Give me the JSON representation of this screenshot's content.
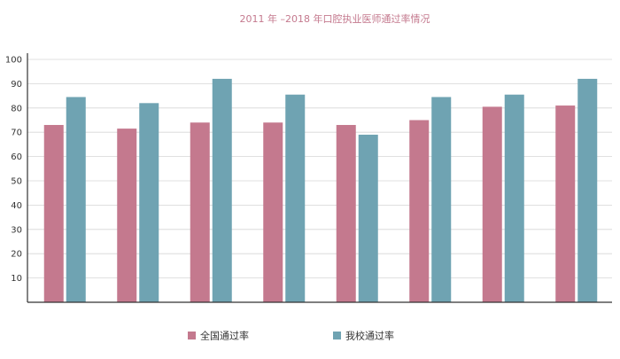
{
  "chart_data": {
    "type": "bar",
    "title": "2011 年 –2018 年口腔执业医师通过率情况",
    "xlabel": "",
    "ylabel": "",
    "ylim": [
      0,
      100
    ],
    "yticks": [
      10,
      20,
      30,
      40,
      50,
      60,
      70,
      80,
      90,
      100
    ],
    "grid": true,
    "legend_position": "bottom",
    "categories": [
      "",
      "",
      "",
      "",
      "",
      "",
      "",
      ""
    ],
    "series": [
      {
        "name": "全国通过率",
        "color": "#c4798e",
        "values": [
          73,
          71.5,
          74,
          74,
          73,
          75,
          80.5,
          81
        ]
      },
      {
        "name": "我校通过率",
        "color": "#6fa3b2",
        "values": [
          84.5,
          82,
          92,
          85.5,
          69,
          84.5,
          85.5,
          92
        ]
      }
    ]
  }
}
